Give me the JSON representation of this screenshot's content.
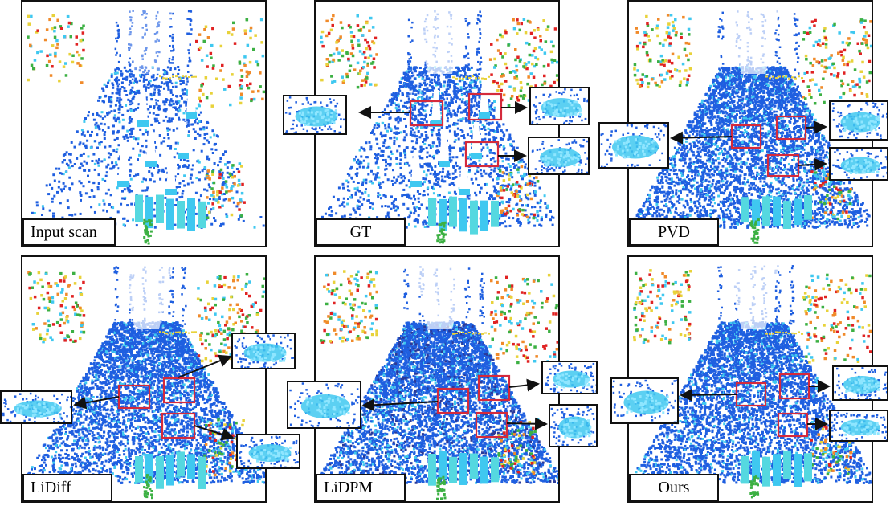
{
  "panels": [
    {
      "label": "Input scan",
      "style": "sparse"
    },
    {
      "label": "GT",
      "style": "gt"
    },
    {
      "label": "PVD",
      "style": "dense"
    },
    {
      "label": "LiDiff",
      "style": "dense"
    },
    {
      "label": "LiDPM",
      "style": "noisy"
    },
    {
      "label": "Ours",
      "style": "dense"
    }
  ],
  "colors": {
    "blue": "#1f5fe0",
    "cyan": "#3fc8f0",
    "green": "#3cb043",
    "yellow": "#e8d23a",
    "orange": "#f08a2a",
    "red": "#e02222",
    "highlight_box": "#d42a3c"
  }
}
